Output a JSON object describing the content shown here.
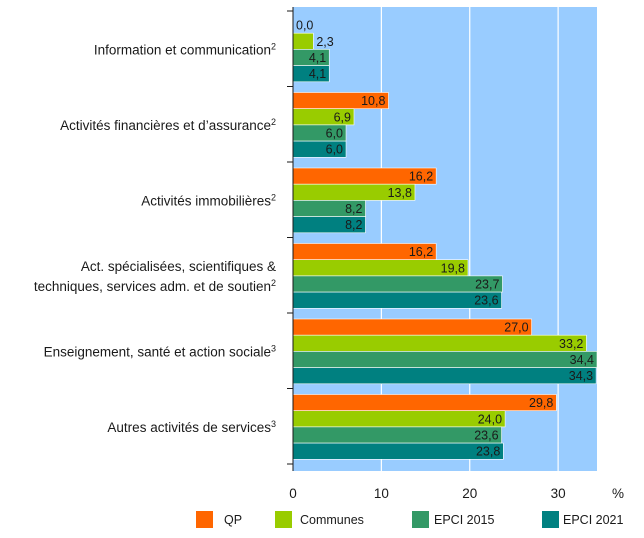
{
  "chart_data": {
    "type": "bar",
    "orientation": "horizontal",
    "categories": [
      {
        "lines": [
          "Information et communication"
        ],
        "sup": "2"
      },
      {
        "lines": [
          "Activités financières et d’assurance"
        ],
        "sup": "2"
      },
      {
        "lines": [
          "Activités immobilières"
        ],
        "sup": "2"
      },
      {
        "lines": [
          "Act. spécialisées, scientifiques &",
          "techniques, services adm. et de soutien"
        ],
        "sup": "2"
      },
      {
        "lines": [
          "Enseignement, santé et action sociale"
        ],
        "sup": "3"
      },
      {
        "lines": [
          "Autres activités de services"
        ],
        "sup": "3"
      }
    ],
    "series": [
      {
        "name": "QP",
        "color": "#ff6600",
        "values": [
          0.0,
          10.8,
          16.2,
          16.2,
          27.0,
          29.8
        ],
        "labels": [
          "0,0",
          "10,8",
          "16,2",
          "16,2",
          "27,0",
          "29,8"
        ]
      },
      {
        "name": "Communes",
        "color": "#99cc00",
        "values": [
          2.3,
          6.9,
          13.8,
          19.8,
          33.2,
          24.0
        ],
        "labels": [
          "2,3",
          "6,9",
          "13,8",
          "19,8",
          "33,2",
          "24,0"
        ]
      },
      {
        "name": "EPCI 2015",
        "color": "#339966",
        "values": [
          4.1,
          6.0,
          8.2,
          23.7,
          34.4,
          23.6
        ],
        "labels": [
          "4,1",
          "6,0",
          "8,2",
          "23,7",
          "34,4",
          "23,6"
        ]
      },
      {
        "name": "EPCI 2021",
        "color": "#008080",
        "values": [
          4.1,
          6.0,
          8.2,
          23.6,
          34.3,
          23.8
        ],
        "labels": [
          "4,1",
          "6,0",
          "8,2",
          "23,6",
          "34,3",
          "23,8"
        ]
      }
    ],
    "xlim": [
      0,
      34.4
    ],
    "xticks": [
      0,
      10,
      20,
      30
    ],
    "xtick_labels": [
      "0",
      "10",
      "20",
      "30"
    ],
    "xunit": "%",
    "grid": true,
    "plot_background": "#99ccff",
    "legend_position": "bottom"
  }
}
